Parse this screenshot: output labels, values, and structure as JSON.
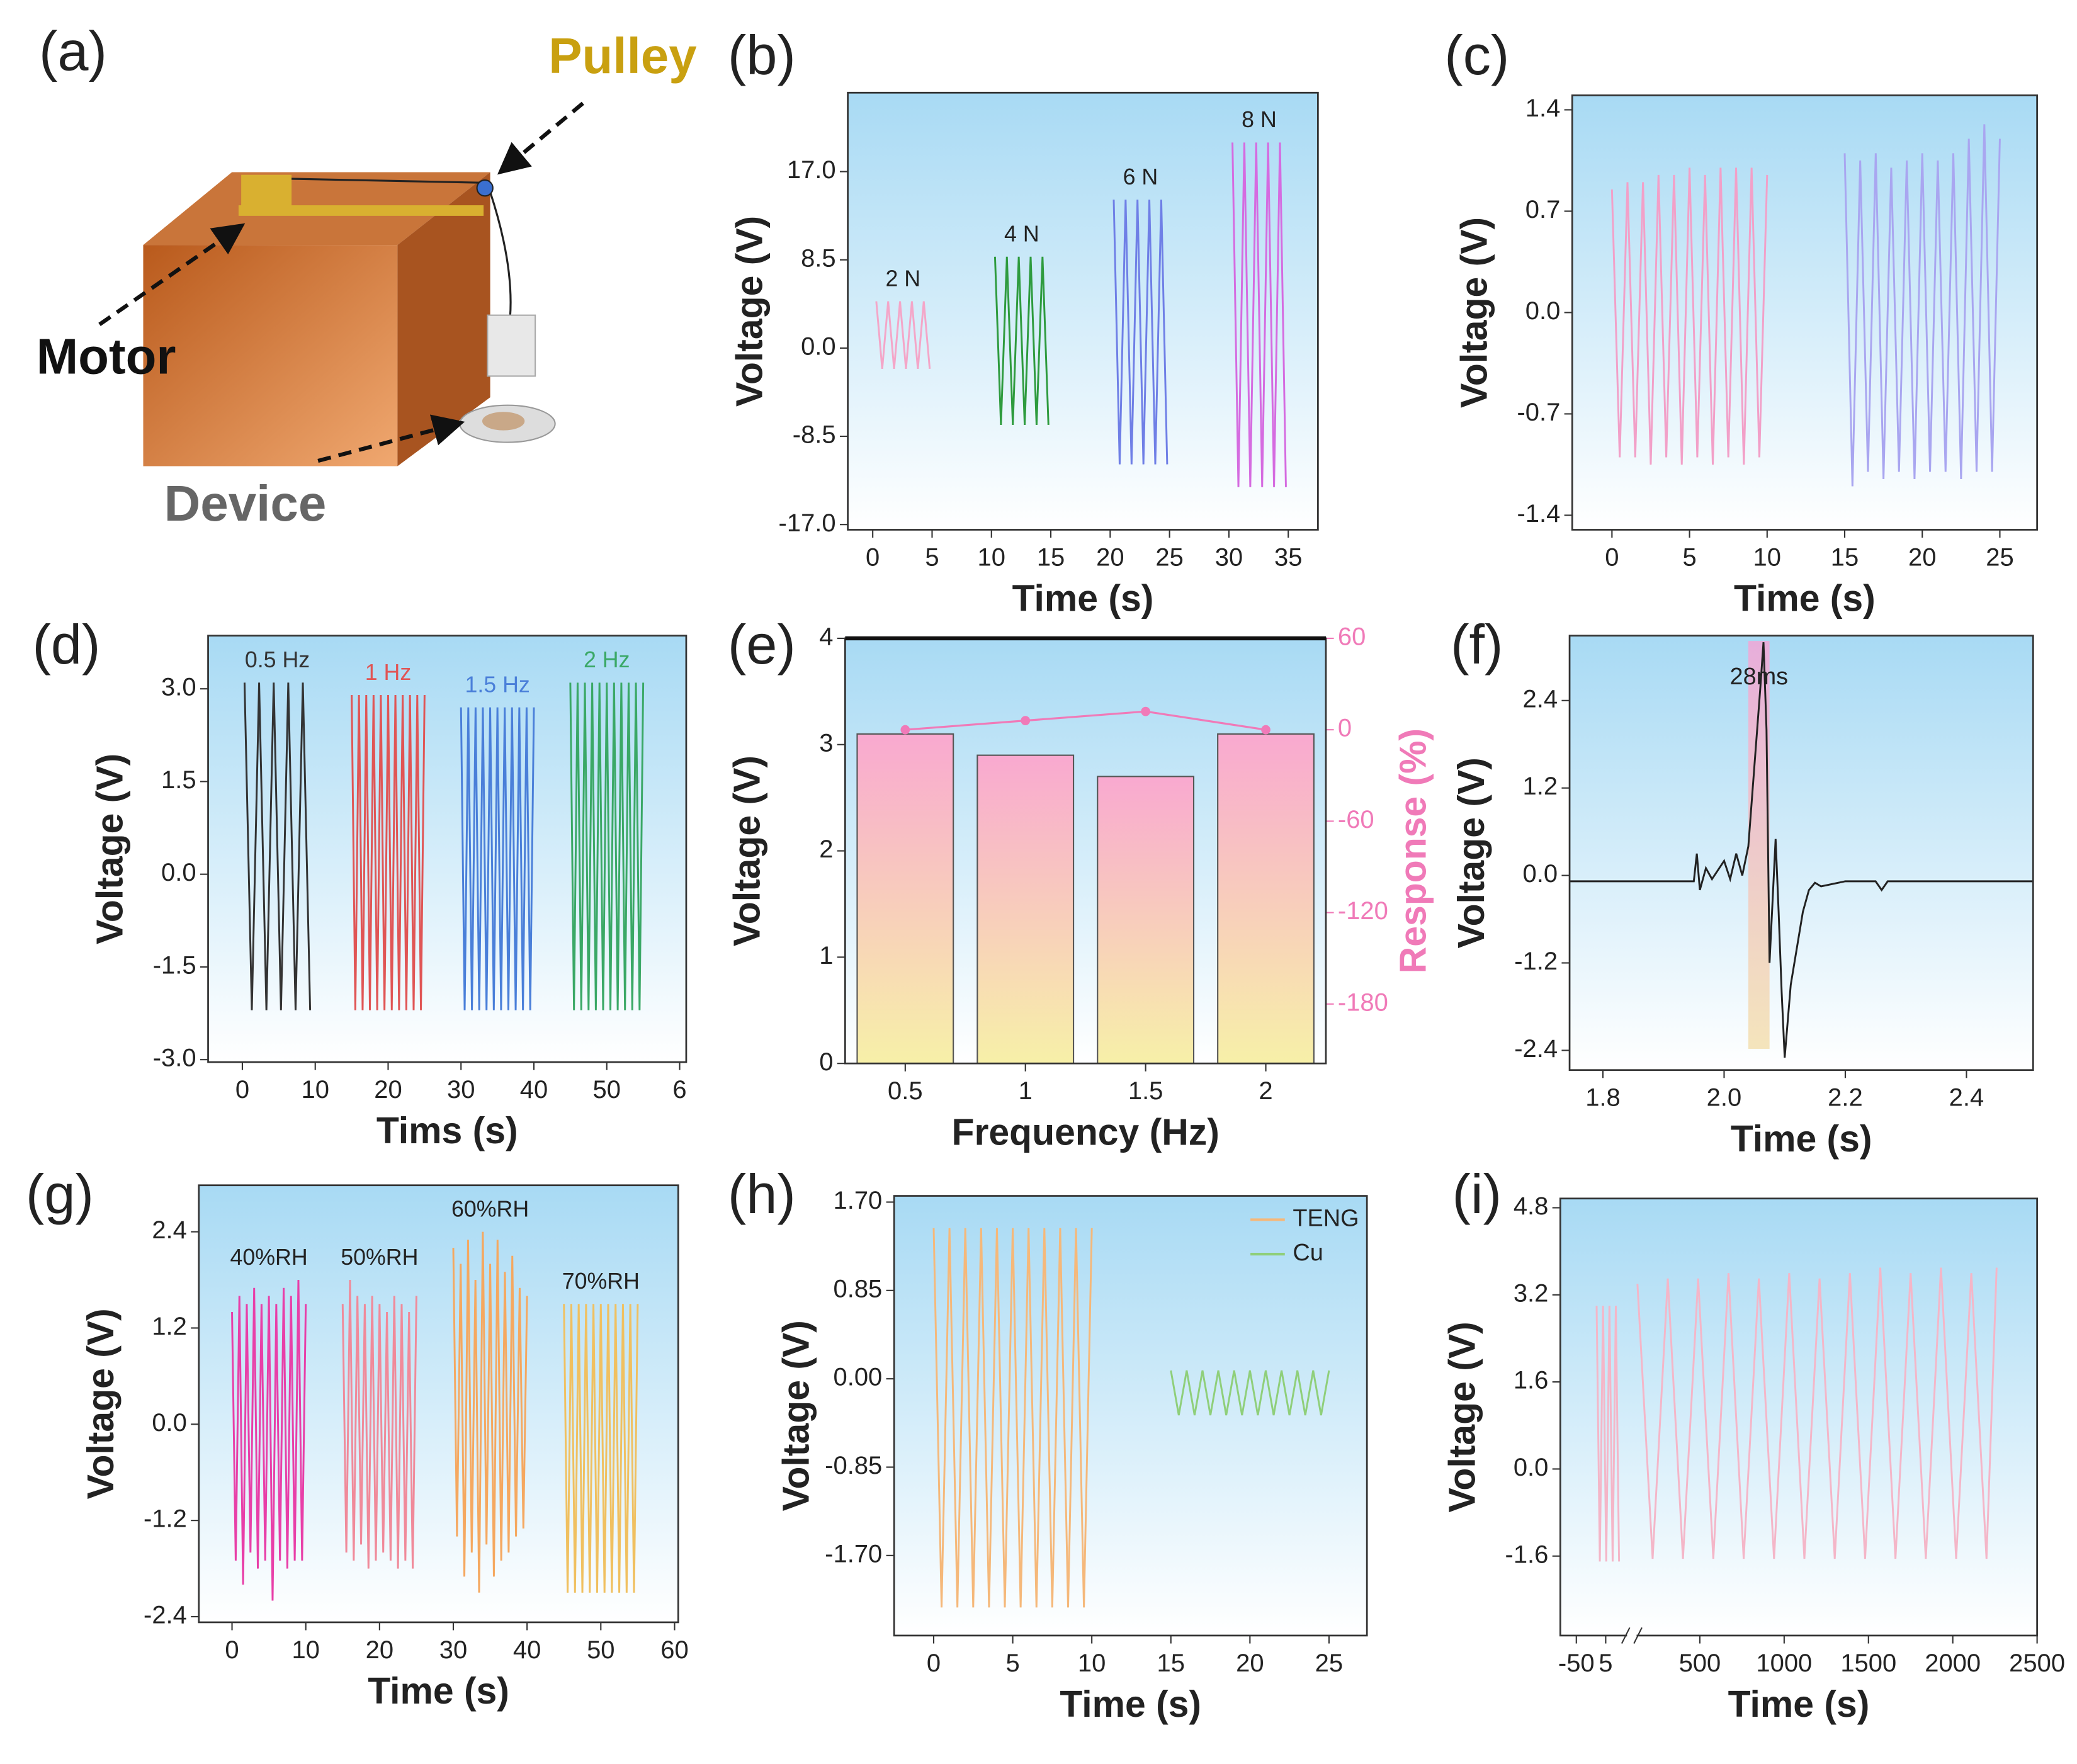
{
  "diagram": {
    "panel_label": "(a)",
    "labels": {
      "pulley": "Pulley",
      "motor": "Motor",
      "device": "Device"
    }
  },
  "chart_data": [
    {
      "panel_label": "(b)",
      "type": "line",
      "xlabel": "Time (s)",
      "ylabel": "Voltage (V)",
      "legend": "inline",
      "xlim": [
        -2.1,
        37.5
      ],
      "ylim": [
        -17.5,
        24.6
      ],
      "xticks": [
        0,
        5,
        10,
        15,
        20,
        25,
        30,
        35
      ],
      "yticks": [
        {
          "value": 17,
          "label": "17.0"
        },
        8.5,
        {
          "value": 0,
          "label": "0.0"
        },
        -8.5,
        {
          "value": -17,
          "label": "-17.0"
        }
      ],
      "series": [
        {
          "name": "2 N",
          "color": "#f4a6c8",
          "x": [
            0.3,
            0.8,
            1.3,
            1.8,
            2.3,
            2.8,
            3.3,
            3.8,
            4.3,
            4.8
          ],
          "values": [
            4.5,
            -2,
            4.5,
            -2,
            4.5,
            -2,
            4.5,
            -2,
            4.5,
            -2
          ]
        },
        {
          "name": "4 N",
          "color": "#2e9b3e",
          "x": [
            10.3,
            10.8,
            11.3,
            11.8,
            12.3,
            12.8,
            13.3,
            13.8,
            14.3,
            14.8
          ],
          "values": [
            8.8,
            -7.4,
            8.8,
            -7.4,
            8.8,
            -7.4,
            8.8,
            -7.4,
            8.8,
            -7.4
          ]
        },
        {
          "name": "6 N",
          "color": "#6f7fe6",
          "x": [
            20.3,
            20.8,
            21.3,
            21.8,
            22.3,
            22.8,
            23.3,
            23.8,
            24.3,
            24.8
          ],
          "values": [
            14.3,
            -11.2,
            14.3,
            -11.2,
            14.3,
            -11.2,
            14.3,
            -11.2,
            14.3,
            -11.2
          ]
        },
        {
          "name": "8 N",
          "color": "#d56be0",
          "x": [
            30.3,
            30.8,
            31.3,
            31.8,
            32.3,
            32.8,
            33.3,
            33.8,
            34.3,
            34.8
          ],
          "values": [
            19.8,
            -13.4,
            19.8,
            -13.4,
            19.8,
            -13.4,
            19.8,
            -13.4,
            19.8,
            -13.4
          ]
        }
      ]
    },
    {
      "panel_label": "(c)",
      "type": "line",
      "xlabel": "Time (s)",
      "ylabel": "Voltage (V)",
      "xlim": [
        -2.56,
        27.4
      ],
      "ylim": [
        -1.5,
        1.5
      ],
      "xticks": [
        0,
        5,
        10,
        15,
        20,
        25
      ],
      "yticks": [
        1.4,
        0.7,
        {
          "value": 0,
          "label": "0.0"
        },
        -0.7,
        -1.4
      ],
      "series": [
        {
          "color": "#f2a0c8",
          "x": [
            0,
            0.5,
            1,
            1.5,
            2,
            2.5,
            3,
            3.5,
            4,
            4.5,
            5,
            5.5,
            6,
            6.5,
            7,
            7.5,
            8,
            8.5,
            9,
            9.5,
            10
          ],
          "values": [
            0.85,
            -1.0,
            0.9,
            -1.0,
            0.9,
            -1.05,
            0.95,
            -1.0,
            0.95,
            -1.05,
            1.0,
            -1.0,
            0.95,
            -1.05,
            1.0,
            -1.0,
            1.0,
            -1.05,
            1.0,
            -1.0,
            0.95
          ]
        },
        {
          "color": "#a9a6f0",
          "x": [
            15,
            15.5,
            16,
            16.5,
            17,
            17.5,
            18,
            18.5,
            19,
            19.5,
            20,
            20.5,
            21,
            21.5,
            22,
            22.5,
            23,
            23.5,
            24,
            24.5,
            25
          ],
          "values": [
            1.1,
            -1.2,
            1.05,
            -1.1,
            1.1,
            -1.15,
            1.0,
            -1.1,
            1.05,
            -1.15,
            1.1,
            -1.1,
            1.05,
            -1.1,
            1.1,
            -1.15,
            1.2,
            -1.1,
            1.3,
            -1.1,
            1.2
          ]
        }
      ]
    },
    {
      "panel_label": "(d)",
      "type": "line",
      "xlabel": "Tims (s)",
      "ylabel": "Voltage (V)",
      "legend": "inline",
      "colored_labels": true,
      "xlim": [
        -4.7,
        60.9
      ],
      "ylim": [
        -3.04,
        3.86
      ],
      "xticks": [
        0,
        10,
        20,
        30,
        40,
        50,
        {
          "value": 60,
          "label": "6"
        }
      ],
      "yticks": [
        {
          "value": 3,
          "label": "3.0"
        },
        1.5,
        {
          "value": 0,
          "label": "0.0"
        },
        -1.5,
        {
          "value": -3,
          "label": "-3.0"
        }
      ],
      "series": [
        {
          "name": "0.5 Hz",
          "color": "#333333",
          "x": [
            0.3,
            1.3,
            2.3,
            3.3,
            4.3,
            5.3,
            6.3,
            7.3,
            8.3,
            9.3
          ],
          "values": [
            3.1,
            -2.2,
            3.1,
            -2.2,
            3.1,
            -2.2,
            3.1,
            -2.2,
            3.1,
            -2.2
          ]
        },
        {
          "name": "1 Hz",
          "color": "#e05555",
          "x": [
            15,
            15.5,
            16,
            16.5,
            17,
            17.5,
            18,
            18.5,
            19,
            19.5,
            20,
            20.5,
            21,
            21.5,
            22,
            22.5,
            23,
            23.5,
            24,
            24.5,
            25
          ],
          "values": [
            2.9,
            -2.2,
            2.9,
            -2.2,
            2.9,
            -2.2,
            2.9,
            -2.2,
            2.9,
            -2.2,
            2.9,
            -2.2,
            2.9,
            -2.2,
            2.9,
            -2.2,
            2.9,
            -2.2,
            2.9,
            -2.2,
            2.9
          ]
        },
        {
          "name": "1.5 Hz",
          "color": "#4a7fd9",
          "x": [
            30,
            30.5,
            31,
            31.5,
            32,
            32.5,
            33,
            33.5,
            34,
            34.5,
            35,
            35.5,
            36,
            36.5,
            37,
            37.5,
            38,
            38.5,
            39,
            39.5,
            40
          ],
          "values": [
            2.7,
            -2.2,
            2.7,
            -2.2,
            2.7,
            -2.2,
            2.7,
            -2.2,
            2.7,
            -2.2,
            2.7,
            -2.2,
            2.7,
            -2.2,
            2.7,
            -2.2,
            2.7,
            -2.2,
            2.7,
            -2.2,
            2.7
          ]
        },
        {
          "name": "2 Hz",
          "color": "#3aa866",
          "x": [
            45,
            45.5,
            46,
            46.5,
            47,
            47.5,
            48,
            48.5,
            49,
            49.5,
            50,
            50.5,
            51,
            51.5,
            52,
            52.5,
            53,
            53.5,
            54,
            54.5,
            55
          ],
          "values": [
            3.1,
            -2.2,
            3.1,
            -2.2,
            3.1,
            -2.2,
            3.1,
            -2.2,
            3.1,
            -2.2,
            3.1,
            -2.2,
            3.1,
            -2.2,
            3.1,
            -2.2,
            3.1,
            -2.2,
            3.1,
            -2.2,
            3.1
          ]
        }
      ]
    },
    {
      "panel_label": "(e)",
      "type": "bar",
      "xlabel": "Frequency (Hz)",
      "ylabel": "Voltage (V)",
      "y2label": "Response (%)",
      "y2color": "#f07ab8",
      "categories": [
        "0.5",
        "1",
        "1.5",
        "2"
      ],
      "ylim": [
        0,
        4
      ],
      "yticks": [
        0,
        1,
        2,
        3,
        4
      ],
      "y2lim": [
        -219,
        60
      ],
      "y2ticks": [
        60,
        0,
        -60,
        -120,
        -180
      ],
      "gradient_to": "#f7f0a8",
      "series": [
        {
          "color": "#f9a9d0",
          "values": [
            3.1,
            2.9,
            2.7,
            3.1
          ]
        },
        {
          "type": "line",
          "axis": "y2",
          "color": "#f07ab8",
          "values": [
            0,
            6,
            12,
            0
          ]
        }
      ]
    },
    {
      "panel_label": "(f)",
      "type": "line",
      "xlabel": "Time (s)",
      "ylabel": "Voltage (V)",
      "annotation": "28ms",
      "highlight_x": [
        2.04,
        2.075
      ],
      "xlim": [
        1.745,
        2.51
      ],
      "ylim": [
        -2.67,
        3.29
      ],
      "xticks": [
        1.8,
        {
          "value": 2,
          "label": "2.0"
        },
        2.2,
        2.4
      ],
      "yticks": [
        2.4,
        1.2,
        {
          "value": 0,
          "label": "0.0"
        },
        -1.2,
        -2.4
      ],
      "series": [
        {
          "color": "#222222",
          "x": [
            1.745,
            1.95,
            1.955,
            1.96,
            1.97,
            1.98,
            2.0,
            2.01,
            2.02,
            2.03,
            2.04,
            2.05,
            2.06,
            2.065,
            2.07,
            2.075,
            2.085,
            2.09,
            2.095,
            2.1,
            2.11,
            2.12,
            2.13,
            2.14,
            2.15,
            2.16,
            2.2,
            2.25,
            2.26,
            2.27,
            2.51
          ],
          "values": [
            -0.08,
            -0.08,
            0.3,
            -0.2,
            0.1,
            -0.05,
            0.2,
            -0.05,
            0.3,
            0.0,
            0.4,
            1.5,
            2.6,
            3.2,
            2.0,
            -1.2,
            0.5,
            -0.5,
            -1.6,
            -2.5,
            -1.5,
            -1.0,
            -0.5,
            -0.2,
            -0.1,
            -0.15,
            -0.08,
            -0.08,
            -0.2,
            -0.08,
            -0.08
          ]
        }
      ]
    },
    {
      "panel_label": "(g)",
      "type": "line",
      "xlabel": "Time (s)",
      "ylabel": "Voltage (V)",
      "legend": "inline",
      "xlim": [
        -4.5,
        60.5
      ],
      "ylim": [
        -2.47,
        2.98
      ],
      "xticks": [
        0,
        10,
        20,
        30,
        40,
        50,
        60
      ],
      "yticks": [
        2.4,
        1.2,
        {
          "value": 0,
          "label": "0.0"
        },
        -1.2,
        -2.4
      ],
      "series": [
        {
          "name": "40%RH",
          "color": "#e83fa8",
          "x": [
            0,
            0.5,
            1,
            1.5,
            2,
            2.5,
            3,
            3.5,
            4,
            4.5,
            5,
            5.5,
            6,
            6.5,
            7,
            7.5,
            8,
            8.5,
            9,
            9.5,
            10
          ],
          "values": [
            1.4,
            -1.7,
            1.6,
            -2.0,
            1.5,
            -1.6,
            1.7,
            -1.8,
            1.5,
            -1.7,
            1.6,
            -2.2,
            1.5,
            -1.7,
            1.7,
            -1.8,
            1.6,
            -1.7,
            1.8,
            -1.7,
            1.5
          ]
        },
        {
          "name": "50%RH",
          "color": "#f08a9a",
          "x": [
            15,
            15.5,
            16,
            16.5,
            17,
            17.5,
            18,
            18.5,
            19,
            19.5,
            20,
            20.5,
            21,
            21.5,
            22,
            22.5,
            23,
            23.5,
            24,
            24.5,
            25
          ],
          "values": [
            1.5,
            -1.6,
            1.8,
            -1.7,
            1.6,
            -1.5,
            1.5,
            -1.8,
            1.6,
            -1.7,
            1.5,
            -1.6,
            1.4,
            -1.7,
            1.6,
            -1.8,
            1.5,
            -1.7,
            1.4,
            -1.8,
            1.6
          ]
        },
        {
          "name": "60%RH",
          "color": "#f5a860",
          "x": [
            30,
            30.5,
            31,
            31.5,
            32,
            32.5,
            33,
            33.5,
            34,
            34.5,
            35,
            35.5,
            36,
            36.5,
            37,
            37.5,
            38,
            38.5,
            39,
            39.5,
            40
          ],
          "values": [
            2.2,
            -1.4,
            2.0,
            -1.9,
            2.3,
            -1.6,
            1.8,
            -2.1,
            2.4,
            -1.5,
            2.0,
            -1.9,
            2.3,
            -1.7,
            1.9,
            -1.6,
            2.1,
            -1.4,
            1.7,
            -1.3,
            1.6
          ]
        },
        {
          "name": "70%RH",
          "color": "#f0c060",
          "x": [
            45,
            45.5,
            46,
            46.5,
            47,
            47.5,
            48,
            48.5,
            49,
            49.5,
            50,
            50.5,
            51,
            51.5,
            52,
            52.5,
            53,
            53.5,
            54,
            54.5,
            55
          ],
          "values": [
            1.5,
            -2.1,
            1.5,
            -2.1,
            1.5,
            -2.1,
            1.5,
            -2.1,
            1.5,
            -2.1,
            1.5,
            -2.1,
            1.5,
            -2.1,
            1.5,
            -2.1,
            1.5,
            -2.1,
            1.5,
            -2.1,
            1.5
          ]
        }
      ]
    },
    {
      "panel_label": "(h)",
      "type": "line",
      "xlabel": "Time (s)",
      "ylabel": "Voltage (V)",
      "legend": "upper right",
      "xlim": [
        -2.5,
        27.4
      ],
      "ylim": [
        -2.47,
        1.76
      ],
      "xticks": [
        0,
        5,
        10,
        15,
        20,
        25
      ],
      "yticks": [
        {
          "value": 1.7,
          "label": "1.70"
        },
        0.85,
        {
          "value": 0,
          "label": "0.00"
        },
        -0.85,
        {
          "value": -1.7,
          "label": "-1.70"
        }
      ],
      "series": [
        {
          "name": "TENG",
          "color": "#f5b87a",
          "x": [
            0,
            0.5,
            1,
            1.5,
            2,
            2.5,
            3,
            3.5,
            4,
            4.5,
            5,
            5.5,
            6,
            6.5,
            7,
            7.5,
            8,
            8.5,
            9,
            9.5,
            10
          ],
          "values": [
            1.45,
            -2.2,
            1.45,
            -2.2,
            1.45,
            -2.2,
            1.45,
            -2.2,
            1.45,
            -2.2,
            1.45,
            -2.2,
            1.45,
            -2.2,
            1.45,
            -2.2,
            1.45,
            -2.2,
            1.45,
            -2.2,
            1.45
          ]
        },
        {
          "name": "Cu",
          "color": "#8fcf7a",
          "x": [
            15,
            15.5,
            16,
            16.5,
            17,
            17.5,
            18,
            18.5,
            19,
            19.5,
            20,
            20.5,
            21,
            21.5,
            22,
            22.5,
            23,
            23.5,
            24,
            24.5,
            25
          ],
          "values": [
            0.08,
            -0.35,
            0.08,
            -0.35,
            0.08,
            -0.35,
            0.08,
            -0.35,
            0.08,
            -0.35,
            0.08,
            -0.35,
            0.08,
            -0.35,
            0.08,
            -0.35,
            0.08,
            -0.35,
            0.08,
            -0.35,
            0.08
          ]
        }
      ]
    },
    {
      "panel_label": "(i)",
      "type": "line",
      "xlabel": "Time (s)",
      "ylabel": "Voltage (V)",
      "x_break": [
        45,
        125
      ],
      "xlim": [
        -80,
        2500
      ],
      "ylim": [
        -3.06,
        4.97
      ],
      "xticks": [
        -50,
        5,
        500,
        1000,
        1500,
        2000,
        2500
      ],
      "yticks": [
        4.8,
        3.2,
        1.6,
        {
          "value": 0,
          "label": "0.0"
        },
        -1.6
      ],
      "series": [
        {
          "color": "#f4b6c8",
          "x": [
            -12,
            -6,
            0,
            6,
            12,
            18,
            24,
            30
          ],
          "values": [
            3.0,
            -1.7,
            3.0,
            -1.7,
            3.0,
            -1.7,
            3.0,
            -1.7
          ]
        },
        {
          "color": "#f4b6c8",
          "x": [
            130,
            220,
            310,
            400,
            490,
            580,
            670,
            760,
            850,
            940,
            1030,
            1120,
            1210,
            1300,
            1390,
            1480,
            1570,
            1660,
            1750,
            1840,
            1930,
            2020,
            2110,
            2200,
            2260
          ],
          "values": [
            3.4,
            -1.65,
            3.5,
            -1.65,
            3.5,
            -1.65,
            3.6,
            -1.65,
            3.5,
            -1.65,
            3.6,
            -1.65,
            3.5,
            -1.65,
            3.6,
            -1.65,
            3.7,
            -1.65,
            3.6,
            -1.65,
            3.7,
            -1.65,
            3.6,
            -1.65,
            3.7
          ]
        }
      ]
    }
  ]
}
